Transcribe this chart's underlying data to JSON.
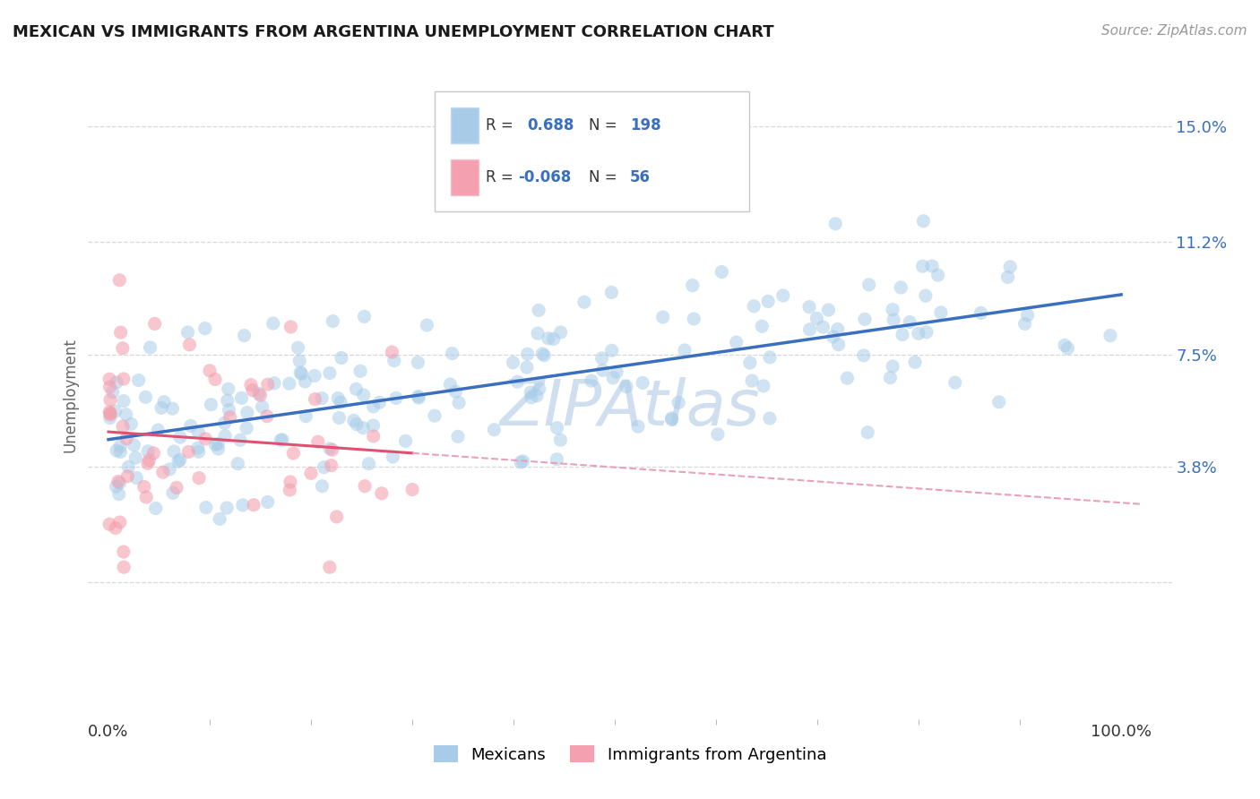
{
  "title": "MEXICAN VS IMMIGRANTS FROM ARGENTINA UNEMPLOYMENT CORRELATION CHART",
  "source": "Source: ZipAtlas.com",
  "ylabel": "Unemployment",
  "yticks": [
    0.0,
    0.038,
    0.075,
    0.112,
    0.15
  ],
  "ytick_labels": [
    "",
    "3.8%",
    "7.5%",
    "11.2%",
    "15.0%"
  ],
  "xlim": [
    -0.02,
    1.05
  ],
  "ylim": [
    -0.045,
    0.168
  ],
  "r_mexican": 0.688,
  "n_mexican": 198,
  "r_argentina": -0.068,
  "n_argentina": 56,
  "blue_scatter_color": "#A8CCE8",
  "blue_line_color": "#3A6FBF",
  "pink_scatter_color": "#F4A0B0",
  "pink_line_color": "#E05070",
  "pink_dash_color": "#EAA0B8",
  "watermark_color": "#D0DFF0",
  "background_color": "#FFFFFF",
  "grid_color": "#D8D8D8",
  "legend_border_color": "#C8C8C8",
  "label_color_blue": "#3A6FBF",
  "label_color_dark": "#333333",
  "scatter_size_blue": 120,
  "scatter_size_pink": 120,
  "scatter_alpha_blue": 0.55,
  "scatter_alpha_pink": 0.6
}
